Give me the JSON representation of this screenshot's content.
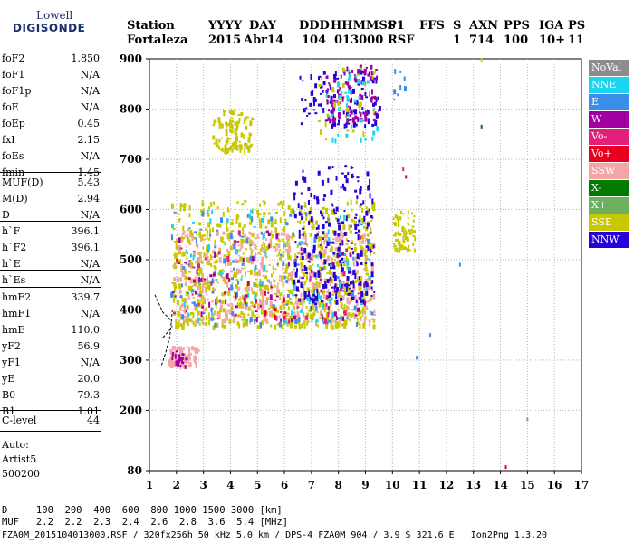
{
  "logo": {
    "line1": "Lowell",
    "line2": "DIGISONDE"
  },
  "header": {
    "labels": [
      "Station",
      "YYYY",
      "DAY",
      "DDD",
      "HHMMSS",
      "P1",
      "FFS",
      "S",
      "AXN",
      "PPS",
      "IGA",
      "PS"
    ],
    "values": [
      "Fortaleza",
      "2015",
      "Abr14",
      "104",
      "013000",
      "RSF",
      "",
      "1",
      "714",
      "100",
      "10+",
      "11"
    ]
  },
  "params": {
    "group1": [
      {
        "key": "foF2",
        "value": "1.850"
      },
      {
        "key": "foF1",
        "value": "N/A"
      },
      {
        "key": "foF1p",
        "value": "N/A"
      },
      {
        "key": "foE",
        "value": "N/A"
      },
      {
        "key": "foEp",
        "value": "0.45"
      },
      {
        "key": "fxI",
        "value": "2.15"
      },
      {
        "key": "foEs",
        "value": "N/A"
      },
      {
        "key": "fmin",
        "value": "1.45"
      }
    ],
    "group2": [
      {
        "key": "MUF(D)",
        "value": "5.43"
      },
      {
        "key": "M(D)",
        "value": "2.94"
      },
      {
        "key": "D",
        "value": "N/A"
      }
    ],
    "group3": [
      {
        "key": "h`F",
        "value": "396.1"
      },
      {
        "key": "h`F2",
        "value": "396.1"
      },
      {
        "key": "h`E",
        "value": "N/A"
      },
      {
        "key": "h`Es",
        "value": "N/A"
      }
    ],
    "group4": [
      {
        "key": "hmF2",
        "value": "339.7"
      },
      {
        "key": "hmF1",
        "value": "N/A"
      },
      {
        "key": "hmE",
        "value": "110.0"
      },
      {
        "key": "yF2",
        "value": "56.9"
      },
      {
        "key": "yF1",
        "value": "N/A"
      },
      {
        "key": "yE",
        "value": "20.0"
      },
      {
        "key": "B0",
        "value": "79.3"
      },
      {
        "key": "B1",
        "value": "1.01"
      }
    ],
    "group5": [
      {
        "key": "C-level",
        "value": "44"
      }
    ]
  },
  "auto_block": {
    "line1": "Auto:",
    "line2": "Artist5",
    "line3": "500200"
  },
  "legend": [
    {
      "label": "NoVal",
      "color": "#8c8c8c"
    },
    {
      "label": "NNE",
      "color": "#1ad4f0"
    },
    {
      "label": "E",
      "color": "#3a8de8"
    },
    {
      "label": "W",
      "color": "#a000a0"
    },
    {
      "label": "Vo-",
      "color": "#e0207a"
    },
    {
      "label": "Vo+",
      "color": "#e8001e"
    },
    {
      "label": "SSW",
      "color": "#f2a6aa"
    },
    {
      "label": "X-",
      "color": "#007a00"
    },
    {
      "label": "X+",
      "color": "#6cb060"
    },
    {
      "label": "SSE",
      "color": "#c8c800"
    },
    {
      "label": "NNW",
      "color": "#2800d8"
    }
  ],
  "bottom": {
    "line1": "D     100  200  400  600  800 1000 1500 3000 [km]",
    "line2": "MUF   2.2  2.2  2.3  2.4  2.6  2.8  3.6  5.4 [MHz]",
    "line3": "FZA0M_2015104013000.RSF / 320fx256h 50 kHz 5.0 km / DPS-4 FZA0M 904 / 3.9 S 321.6 E   Ion2Png 1.3.20"
  },
  "chart_data": {
    "type": "scatter",
    "title": "",
    "xlabel": "",
    "ylabel": "",
    "xlim": [
      1,
      17
    ],
    "ylim": [
      80,
      900
    ],
    "x_ticks": [
      1,
      2,
      3,
      4,
      5,
      6,
      7,
      8,
      9,
      10,
      11,
      12,
      13,
      14,
      15,
      16,
      17
    ],
    "y_ticks": [
      80,
      200,
      300,
      400,
      500,
      600,
      700,
      800,
      900
    ],
    "grid": true,
    "legend_placement": "right",
    "clusters": [
      {
        "name": "SSE",
        "freq_range": [
          1.8,
          9.3
        ],
        "height_range": [
          370,
          620
        ],
        "count": 900
      },
      {
        "name": "SSW",
        "freq_range": [
          1.8,
          9.3
        ],
        "height_range": [
          380,
          560
        ],
        "count": 450
      },
      {
        "name": "NNW",
        "freq_range": [
          6.3,
          9.3
        ],
        "height_range": [
          420,
          690
        ],
        "count": 260
      },
      {
        "name": "E",
        "freq_range": [
          1.7,
          9.2
        ],
        "height_range": [
          370,
          600
        ],
        "count": 120
      },
      {
        "name": "NNE",
        "freq_range": [
          1.7,
          9.2
        ],
        "height_range": [
          380,
          600
        ],
        "count": 80
      },
      {
        "name": "W",
        "freq_range": [
          1.8,
          9.0
        ],
        "height_range": [
          380,
          560
        ],
        "count": 60
      },
      {
        "name": "Vo-",
        "freq_range": [
          1.8,
          9.0
        ],
        "height_range": [
          380,
          560
        ],
        "count": 40
      },
      {
        "name": "Vo+",
        "freq_range": [
          1.8,
          6.0
        ],
        "height_range": [
          380,
          470
        ],
        "count": 25
      },
      {
        "name": "SSW",
        "freq_range": [
          1.7,
          2.8
        ],
        "height_range": [
          290,
          330
        ],
        "count": 80
      },
      {
        "name": "W",
        "freq_range": [
          1.8,
          2.4
        ],
        "height_range": [
          290,
          320
        ],
        "count": 20
      },
      {
        "name": "SSE",
        "freq_range": [
          3.3,
          4.8
        ],
        "height_range": [
          720,
          800
        ],
        "count": 110
      },
      {
        "name": "SSE",
        "freq_range": [
          10.0,
          10.8
        ],
        "height_range": [
          520,
          600
        ],
        "count": 60
      },
      {
        "name": "NNW",
        "freq_range": [
          6.5,
          9.5
        ],
        "height_range": [
          770,
          880
        ],
        "count": 110
      },
      {
        "name": "W",
        "freq_range": [
          7.5,
          9.4
        ],
        "height_range": [
          780,
          890
        ],
        "count": 90
      },
      {
        "name": "NNE",
        "freq_range": [
          7.5,
          9.4
        ],
        "height_range": [
          740,
          880
        ],
        "count": 40
      },
      {
        "name": "SSE",
        "freq_range": [
          7.2,
          9.3
        ],
        "height_range": [
          740,
          890
        ],
        "count": 30
      },
      {
        "name": "E",
        "freq_range": [
          10.0,
          10.5
        ],
        "height_range": [
          820,
          880
        ],
        "count": 8
      }
    ],
    "sparse_points": [
      {
        "name": "E",
        "x": 12.5,
        "y": 490
      },
      {
        "name": "E",
        "x": 11.4,
        "y": 350
      },
      {
        "name": "E",
        "x": 10.9,
        "y": 305
      },
      {
        "name": "SSE",
        "x": 13.3,
        "y": 898
      },
      {
        "name": "X-",
        "x": 13.3,
        "y": 765
      },
      {
        "name": "X+",
        "x": 15.0,
        "y": 182
      },
      {
        "name": "Vo+",
        "x": 14.2,
        "y": 87
      },
      {
        "name": "Vo-",
        "x": 10.4,
        "y": 680
      },
      {
        "name": "Vo+",
        "x": 10.5,
        "y": 665
      }
    ],
    "profile_curves": [
      {
        "points": [
          [
            1.45,
            290
          ],
          [
            1.6,
            315
          ],
          [
            1.75,
            345
          ],
          [
            1.82,
            380
          ],
          [
            1.85,
            400
          ]
        ]
      },
      {
        "points": [
          [
            1.2,
            430
          ],
          [
            1.5,
            395
          ],
          [
            1.75,
            382
          ],
          [
            1.82,
            375
          ]
        ]
      },
      {
        "points": [
          [
            1.5,
            345
          ],
          [
            1.75,
            360
          ],
          [
            1.85,
            368
          ]
        ]
      }
    ]
  }
}
